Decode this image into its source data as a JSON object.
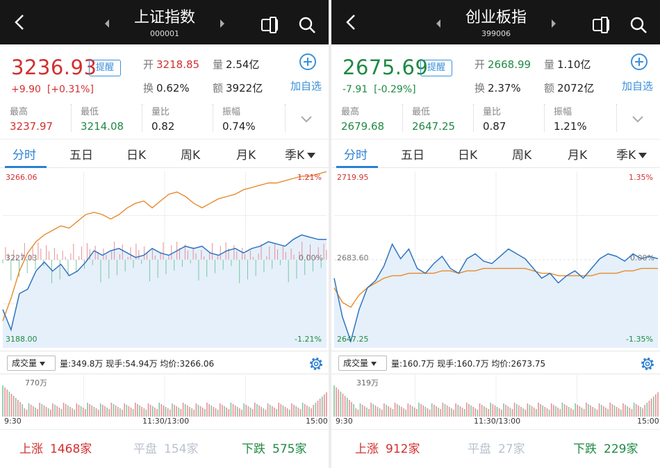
{
  "panels": [
    {
      "title": "上证指数",
      "code": "000001",
      "price": "3236.93",
      "change": "+9.90",
      "change_pct": "[+0.31%]",
      "direction": "up",
      "remind_label": "提醒",
      "open_label": "开",
      "open": "3218.85",
      "volume_label": "量",
      "volume": "2.54亿",
      "turnover_label": "换",
      "turnover": "0.62%",
      "amount_label": "额",
      "amount": "3922亿",
      "add_label": "加自选",
      "stats": [
        {
          "label": "最高",
          "value": "3237.97",
          "color": "up"
        },
        {
          "label": "最低",
          "value": "3214.08",
          "color": "dn"
        },
        {
          "label": "量比",
          "value": "0.82",
          "color": "plain"
        },
        {
          "label": "振幅",
          "value": "0.74%",
          "color": "plain"
        }
      ],
      "tabs": [
        "分时",
        "五日",
        "日K",
        "周K",
        "月K",
        "季K"
      ],
      "active_tab": "分时",
      "axis": {
        "top": "3266.06",
        "mid": "3227.03",
        "bottom": "3188.00",
        "top_pct": "1.21%",
        "mid_pct": "0.00%",
        "bottom_pct": "-1.21%"
      },
      "vol_select": "成交量",
      "vol_info": "量:349.8万  现手:54.94万  均价:3266.06",
      "vol_max": "770万",
      "times": [
        "9:30",
        "11:30/13:00",
        "15:00"
      ],
      "breadth": {
        "up_label": "上涨",
        "up": "1468家",
        "flat_label": "平盘",
        "flat": "154家",
        "down_label": "下跌",
        "down": "575家"
      }
    },
    {
      "title": "创业板指",
      "code": "399006",
      "price": "2675.69",
      "change": "-7.91",
      "change_pct": "[-0.29%]",
      "direction": "dn",
      "remind_label": "提醒",
      "open_label": "开",
      "open": "2668.99",
      "volume_label": "量",
      "volume": "1.10亿",
      "turnover_label": "换",
      "turnover": "2.37%",
      "amount_label": "额",
      "amount": "2072亿",
      "add_label": "加自选",
      "stats": [
        {
          "label": "最高",
          "value": "2679.68",
          "color": "dn"
        },
        {
          "label": "最低",
          "value": "2647.25",
          "color": "dn"
        },
        {
          "label": "量比",
          "value": "0.87",
          "color": "plain"
        },
        {
          "label": "振幅",
          "value": "1.21%",
          "color": "plain"
        }
      ],
      "tabs": [
        "分时",
        "五日",
        "日K",
        "周K",
        "月K",
        "季K"
      ],
      "active_tab": "分时",
      "axis": {
        "top": "2719.95",
        "mid": "2683.60",
        "bottom": "2647.25",
        "top_pct": "1.35%",
        "mid_pct": "0.00%",
        "bottom_pct": "-1.35%"
      },
      "vol_select": "成交量",
      "vol_info": "量:160.7万  现手:160.7万  均价:2673.75",
      "vol_max": "319万",
      "times": [
        "9:30",
        "11:30/13:00",
        "15:00"
      ],
      "breadth": {
        "up_label": "上涨",
        "up": "912家",
        "flat_label": "平盘",
        "flat": "27家",
        "down_label": "下跌",
        "down": "229家"
      }
    }
  ],
  "colors": {
    "up": "#d32f2f",
    "down": "#1e8a43",
    "accent": "#2b7fd4",
    "price_line": "#2f74c0",
    "avg_line": "#e8892b",
    "area": "#e5f0fb"
  },
  "chart_data": [
    {
      "type": "line",
      "ylim": [
        3188.0,
        3266.06
      ],
      "series": [
        {
          "values": [
            3205,
            3196,
            3212,
            3214,
            3222,
            3226,
            3222,
            3225,
            3220,
            3222,
            3226,
            3231,
            3229,
            3231,
            3232,
            3230,
            3228,
            3229,
            3232,
            3230,
            3229,
            3231,
            3233,
            3232,
            3233,
            3230,
            3229,
            3231,
            3232,
            3230,
            3232,
            3233,
            3235,
            3234,
            3233,
            3236,
            3238,
            3237,
            3236,
            3236
          ]
        },
        {
          "values": [
            3200,
            3210,
            3222,
            3230,
            3235,
            3238,
            3240,
            3242,
            3241,
            3244,
            3247,
            3248,
            3247,
            3245,
            3247,
            3250,
            3252,
            3253,
            3250,
            3253,
            3256,
            3257,
            3255,
            3252,
            3250,
            3252,
            3254,
            3255,
            3256,
            3258,
            3259,
            3260,
            3261,
            3261,
            3262,
            3263,
            3264,
            3264,
            3265,
            3266
          ]
        }
      ]
    },
    {
      "type": "line",
      "ylim": [
        2647.25,
        2719.95
      ],
      "series": [
        {
          "values": [
            2676,
            2660,
            2650,
            2663,
            2672,
            2675,
            2681,
            2690,
            2684,
            2688,
            2680,
            2678,
            2682,
            2685,
            2680,
            2678,
            2684,
            2686,
            2683,
            2682,
            2685,
            2688,
            2686,
            2684,
            2680,
            2676,
            2678,
            2674,
            2677,
            2679,
            2676,
            2680,
            2684,
            2686,
            2685,
            2683,
            2686,
            2684,
            2685,
            2684
          ]
        },
        {
          "values": [
            2672,
            2666,
            2664,
            2669,
            2672,
            2674,
            2676,
            2677,
            2677,
            2678,
            2678,
            2678,
            2678,
            2679,
            2679,
            2678,
            2679,
            2679,
            2680,
            2680,
            2680,
            2680,
            2680,
            2680,
            2679,
            2678,
            2678,
            2677,
            2677,
            2677,
            2677,
            2677,
            2678,
            2678,
            2678,
            2679,
            2679,
            2680,
            2680,
            2680
          ]
        }
      ]
    }
  ]
}
